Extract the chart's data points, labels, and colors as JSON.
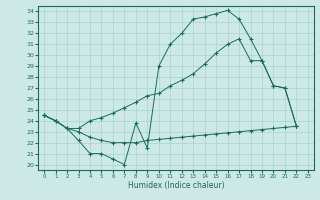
{
  "xlabel": "Humidex (Indice chaleur)",
  "background_color": "#cce9e5",
  "grid_color": "#aad4cf",
  "line_color": "#1a6b5e",
  "xlim": [
    -0.5,
    23.5
  ],
  "ylim": [
    19.5,
    34.5
  ],
  "xticks": [
    0,
    1,
    2,
    3,
    4,
    5,
    6,
    7,
    8,
    9,
    10,
    11,
    12,
    13,
    14,
    15,
    16,
    17,
    18,
    19,
    20,
    21,
    22,
    23
  ],
  "yticks": [
    20,
    21,
    22,
    23,
    24,
    25,
    26,
    27,
    28,
    29,
    30,
    31,
    32,
    33,
    34
  ],
  "line1_x": [
    0,
    1,
    2,
    3,
    4,
    5,
    6,
    7,
    8,
    9,
    10,
    11,
    12,
    13,
    14,
    15,
    16,
    17,
    18,
    19,
    20,
    21,
    22
  ],
  "line1_y": [
    24.5,
    24.0,
    23.3,
    22.2,
    21.0,
    21.0,
    20.5,
    20.0,
    23.8,
    21.5,
    29.0,
    31.0,
    32.0,
    33.3,
    33.5,
    33.8,
    34.1,
    33.3,
    31.5,
    29.5,
    27.2,
    27.0,
    23.5
  ],
  "line2_x": [
    0,
    1,
    2,
    3,
    4,
    5,
    6,
    7,
    8,
    9,
    10,
    11,
    12,
    13,
    14,
    15,
    16,
    17,
    18,
    19,
    20,
    21,
    22
  ],
  "line2_y": [
    24.5,
    24.0,
    23.3,
    23.0,
    22.5,
    22.2,
    22.0,
    22.0,
    22.0,
    22.2,
    22.3,
    22.4,
    22.5,
    22.6,
    22.7,
    22.8,
    22.9,
    23.0,
    23.1,
    23.2,
    23.3,
    23.4,
    23.5
  ],
  "line3_x": [
    0,
    1,
    2,
    3,
    4,
    5,
    6,
    7,
    8,
    9,
    10,
    11,
    12,
    13,
    14,
    15,
    16,
    17,
    18,
    19,
    20,
    21,
    22
  ],
  "line3_y": [
    24.5,
    24.0,
    23.3,
    23.3,
    24.0,
    24.3,
    24.7,
    25.2,
    25.7,
    26.3,
    26.5,
    27.2,
    27.7,
    28.3,
    29.2,
    30.2,
    31.0,
    31.5,
    29.5,
    29.5,
    27.2,
    27.0,
    23.5
  ]
}
